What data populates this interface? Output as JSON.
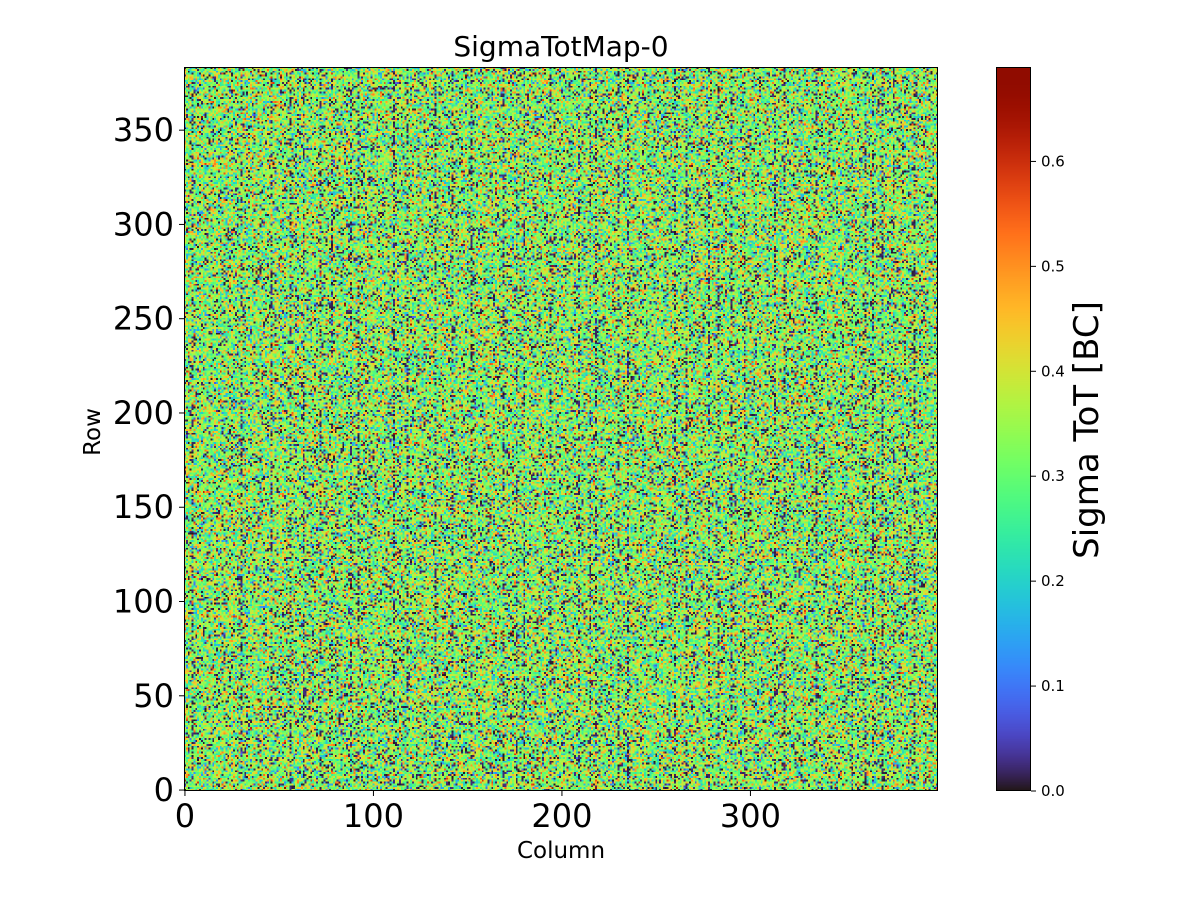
{
  "chart_data": {
    "type": "heatmap",
    "title": "SigmaTotMap-0",
    "xlabel": "Column",
    "ylabel": "Row",
    "colorbar_label": "Sigma ToT [BC]",
    "colormap": "turbo",
    "xlim": [
      0,
      400
    ],
    "ylim": [
      0,
      384
    ],
    "zlim": [
      0,
      0.69
    ],
    "x_ticks": [
      0,
      100,
      200,
      300
    ],
    "y_ticks": [
      0,
      50,
      100,
      150,
      200,
      250,
      300,
      350
    ],
    "colorbar_ticks": [
      "0.0",
      "0.1",
      "0.2",
      "0.3",
      "0.4",
      "0.5",
      "0.6"
    ],
    "colorbar_tick_values": [
      0.0,
      0.1,
      0.2,
      0.3,
      0.4,
      0.5,
      0.6
    ],
    "typical_value": 0.33,
    "spread": 0.1,
    "dark_column_bands": [
      4,
      30,
      46,
      56,
      63,
      72,
      78,
      88,
      92,
      111,
      118,
      133,
      142,
      152,
      169,
      176,
      180,
      194,
      209,
      215,
      218,
      230,
      235,
      260,
      266,
      278,
      283,
      290,
      297,
      313,
      318,
      335,
      354,
      361,
      365,
      370,
      376,
      387
    ]
  }
}
